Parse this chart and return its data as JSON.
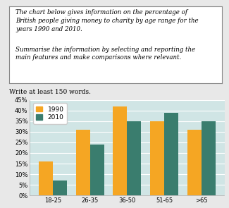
{
  "title_box_line1": "The chart below gives information on the percentage of",
  "title_box_line2": "British people giving money to charity by age range for the",
  "title_box_line3": "years 1990 and 2010.",
  "title_box_line4": "Summarise the information by selecting and reporting the",
  "title_box_line5": "main features and make comparisons where relevant.",
  "write_text": "Write at least 150 words.",
  "categories": [
    "18-25",
    "26-35",
    "36-50",
    "51-65",
    ">65"
  ],
  "series_1990": [
    16,
    31,
    42,
    35,
    31
  ],
  "series_2010": [
    7,
    24,
    35,
    39,
    35
  ],
  "color_1990": "#F5A623",
  "color_2010": "#3A7D6E",
  "ylim": [
    0,
    45
  ],
  "ytick_values": [
    0,
    5,
    10,
    15,
    20,
    25,
    30,
    35,
    40,
    45
  ],
  "ytick_labels": [
    "0%",
    "5%",
    "10%",
    "15%",
    "20%",
    "25%",
    "30%",
    "35%",
    "40%",
    "45%"
  ],
  "chart_bg": "#D0E5E5",
  "outer_bg": "#E8E8E8",
  "box_bg": "#FFFFFF",
  "box_border": "#888888",
  "bar_width": 0.38,
  "legend_fontsize": 6.5,
  "tick_fontsize": 6,
  "text_fontsize": 6.2
}
